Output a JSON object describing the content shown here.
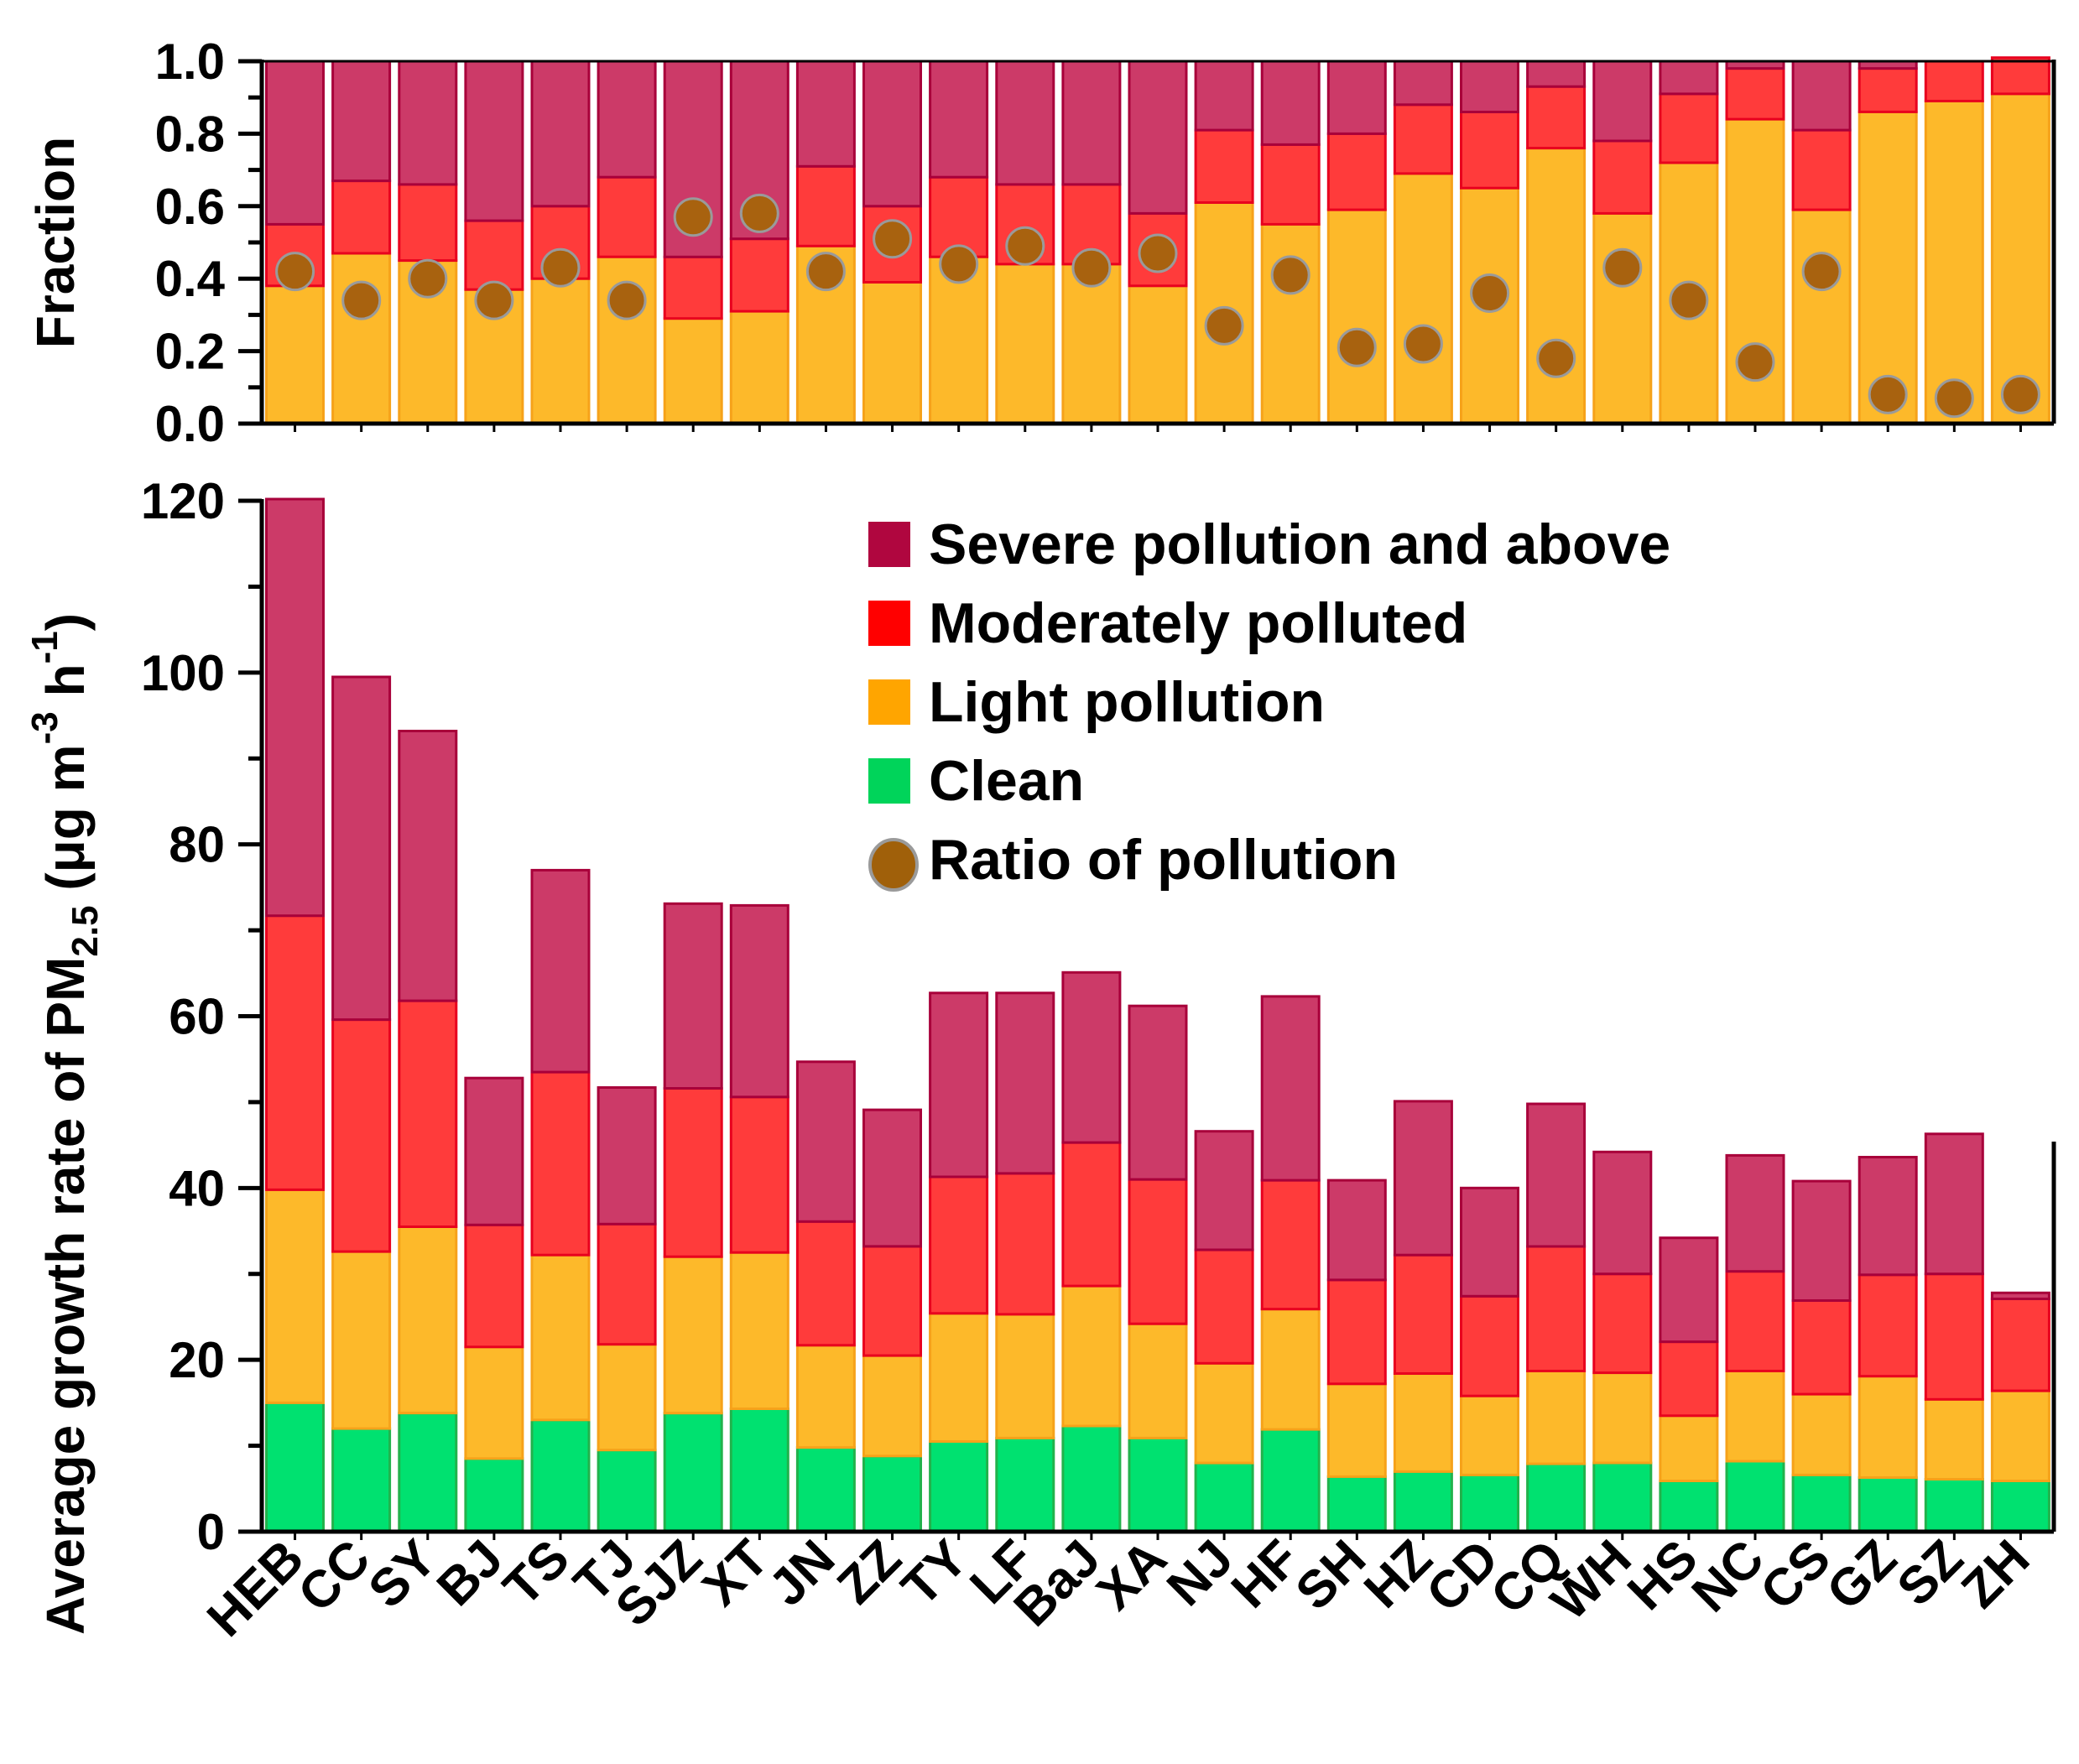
{
  "chart_data": [
    {
      "type": "bar",
      "stacked": true,
      "panel": "top",
      "ylabel": "Fraction",
      "ylim": [
        0,
        1.0
      ],
      "yticks": [
        "0.0",
        "0.2",
        "0.4",
        "0.6",
        "0.8",
        "1.0"
      ],
      "categories": [
        "HEB",
        "CC",
        "SY",
        "BJ",
        "TS",
        "TJ",
        "SJZ",
        "XT",
        "JN",
        "ZZ",
        "TY",
        "LF",
        "BaJ",
        "XA",
        "NJ",
        "HF",
        "SH",
        "HZ",
        "CD",
        "CQ",
        "WH",
        "HS",
        "NC",
        "CS",
        "GZ",
        "SZ",
        "ZH"
      ],
      "series": [
        {
          "name": "Light pollution",
          "color": "#FDB92A",
          "values": [
            0.38,
            0.47,
            0.45,
            0.37,
            0.4,
            0.46,
            0.29,
            0.31,
            0.49,
            0.39,
            0.46,
            0.44,
            0.44,
            0.38,
            0.61,
            0.55,
            0.59,
            0.69,
            0.65,
            0.76,
            0.58,
            0.72,
            0.84,
            0.59,
            0.86,
            0.89,
            0.91
          ]
        },
        {
          "name": "Moderately polluted",
          "color": "#FF3B3B",
          "values": [
            0.17,
            0.2,
            0.21,
            0.19,
            0.2,
            0.22,
            0.17,
            0.2,
            0.22,
            0.21,
            0.22,
            0.22,
            0.22,
            0.2,
            0.2,
            0.22,
            0.21,
            0.19,
            0.21,
            0.17,
            0.2,
            0.19,
            0.14,
            0.22,
            0.12,
            0.11,
            0.1
          ]
        },
        {
          "name": "Severe pollution and above",
          "color": "#CC3A68",
          "values": [
            0.45,
            0.33,
            0.34,
            0.44,
            0.4,
            0.32,
            0.54,
            0.49,
            0.29,
            0.4,
            0.32,
            0.34,
            0.34,
            0.42,
            0.19,
            0.23,
            0.2,
            0.12,
            0.14,
            0.07,
            0.22,
            0.09,
            0.02,
            0.19,
            0.02,
            0.0,
            0.0
          ]
        }
      ],
      "points": {
        "name": "Ratio of pollution",
        "color": "#A8620F",
        "values": [
          0.42,
          0.34,
          0.4,
          0.34,
          0.43,
          0.34,
          0.57,
          0.58,
          0.42,
          0.51,
          0.44,
          0.49,
          0.43,
          0.47,
          0.27,
          0.41,
          0.21,
          0.22,
          0.36,
          0.18,
          0.43,
          0.34,
          0.17,
          0.42,
          0.08,
          0.07,
          0.08
        ]
      }
    },
    {
      "type": "bar",
      "stacked": true,
      "panel": "bottom",
      "ylabel_parts": {
        "pre": "Average growth rate of PM",
        "sub": "2.5",
        "mid": " (μg m",
        "sup1": "-3",
        "mid2": " h",
        "sup2": "-1",
        "post": ")"
      },
      "ylim": [
        0,
        120
      ],
      "yticks": [
        "0",
        "20",
        "40",
        "60",
        "80",
        "100",
        "120"
      ],
      "categories": [
        "HEB",
        "CC",
        "SY",
        "BJ",
        "TS",
        "TJ",
        "SJZ",
        "XT",
        "JN",
        "ZZ",
        "TY",
        "LF",
        "BaJ",
        "XA",
        "NJ",
        "HF",
        "SH",
        "HZ",
        "CD",
        "CQ",
        "WH",
        "HS",
        "NC",
        "CS",
        "GZ",
        "SZ",
        "ZH"
      ],
      "series": [
        {
          "name": "Clean",
          "color": "#00E170",
          "values": [
            15.0,
            12.0,
            13.8,
            8.5,
            13.0,
            9.5,
            13.8,
            14.3,
            9.8,
            8.8,
            10.5,
            10.9,
            12.3,
            10.9,
            8.0,
            11.9,
            6.4,
            7.0,
            6.6,
            7.9,
            8.0,
            5.9,
            8.2,
            6.6,
            6.3,
            6.1,
            5.9
          ]
        },
        {
          "name": "Light pollution",
          "color": "#FDB92A",
          "values": [
            24.8,
            20.6,
            21.7,
            13.0,
            19.2,
            12.3,
            18.2,
            18.2,
            11.9,
            11.7,
            14.9,
            14.4,
            16.3,
            13.3,
            11.6,
            14.0,
            10.8,
            11.4,
            9.2,
            10.8,
            10.5,
            7.6,
            10.5,
            9.4,
            11.8,
            9.3,
            10.5
          ]
        },
        {
          "name": "Moderately polluted",
          "color": "#FF3B3B",
          "values": [
            31.9,
            27.0,
            26.3,
            14.2,
            21.3,
            14.0,
            19.6,
            18.1,
            14.4,
            12.7,
            15.9,
            16.4,
            16.7,
            16.8,
            13.2,
            15.0,
            12.1,
            13.8,
            11.6,
            14.5,
            11.5,
            8.6,
            11.6,
            10.9,
            11.8,
            14.6,
            10.7
          ]
        },
        {
          "name": "Severe pollution and above",
          "color": "#CC3A68",
          "values": [
            48.5,
            39.9,
            31.4,
            17.1,
            23.5,
            15.9,
            21.5,
            22.3,
            18.6,
            15.9,
            21.4,
            21.0,
            19.8,
            20.2,
            13.8,
            21.4,
            11.6,
            17.9,
            12.6,
            16.6,
            14.2,
            12.1,
            13.5,
            13.9,
            13.7,
            16.3,
            0.7
          ]
        }
      ],
      "legend": {
        "placement": "top-right",
        "entries": [
          {
            "label": "Severe pollution and above",
            "color": "#B0063F",
            "marker": "square"
          },
          {
            "label": " Moderately polluted",
            "color": "#FF0000",
            "marker": "square"
          },
          {
            "label": " Light pollution",
            "color": "#FFA500",
            "marker": "square"
          },
          {
            "label": " Clean",
            "color": "#00D45A",
            "marker": "square"
          },
          {
            "label": "Ratio of pollution",
            "color": "#A0600A",
            "marker": "circle"
          }
        ]
      }
    }
  ]
}
